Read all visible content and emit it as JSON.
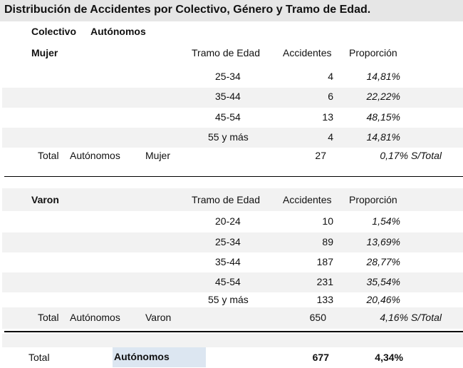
{
  "title": "Distribución de Accidentes por Colectivo, Género y Tramo de Edad.",
  "colectivo_label": "Colectivo",
  "colectivo_value": "Autónomos",
  "headers": {
    "tramo": "Tramo de Edad",
    "accidentes": "Accidentes",
    "proporcion": "Proporción"
  },
  "mujer": {
    "genero": "Mujer",
    "rows": [
      {
        "tramo": "25-34",
        "accidentes": "4",
        "proporcion": "14,81%"
      },
      {
        "tramo": "35-44",
        "accidentes": "6",
        "proporcion": "22,22%"
      },
      {
        "tramo": "45-54",
        "accidentes": "13",
        "proporcion": "48,15%"
      },
      {
        "tramo": "55 y más",
        "accidentes": "4",
        "proporcion": "14,81%"
      }
    ],
    "total": {
      "label": "Total",
      "colectivo": "Autónomos",
      "genero": "Mujer",
      "accidentes": "27",
      "proporcion": "0,17% S/Total"
    }
  },
  "varon": {
    "genero": "Varon",
    "rows": [
      {
        "tramo": "20-24",
        "accidentes": "10",
        "proporcion": "1,54%"
      },
      {
        "tramo": "25-34",
        "accidentes": "89",
        "proporcion": "13,69%"
      },
      {
        "tramo": "35-44",
        "accidentes": "187",
        "proporcion": "28,77%"
      },
      {
        "tramo": "45-54",
        "accidentes": "231",
        "proporcion": "35,54%"
      },
      {
        "tramo": "55 y más",
        "accidentes": "133",
        "proporcion": "20,46%"
      }
    ],
    "total": {
      "label": "Total",
      "colectivo": "Autónomos",
      "genero": "Varon",
      "accidentes": "650",
      "proporcion": "4,16% S/Total"
    }
  },
  "grand_total": {
    "label": "Total",
    "colectivo": "Autónomos",
    "accidentes": "677",
    "proporcion": "4,34%"
  }
}
